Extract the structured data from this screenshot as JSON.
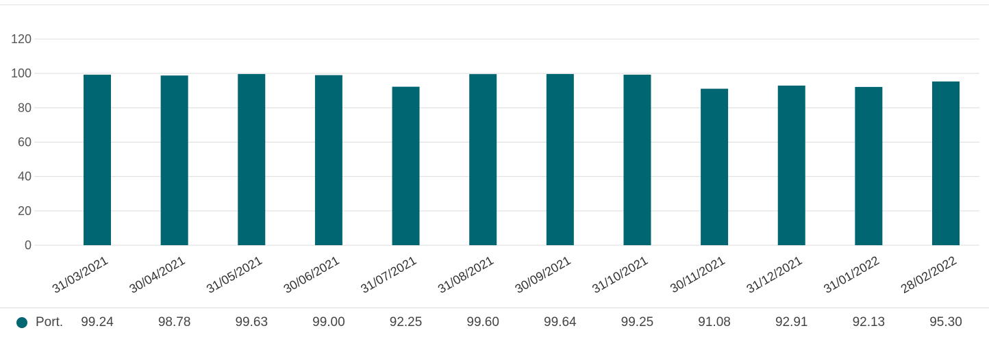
{
  "chart_data": {
    "type": "bar",
    "categories": [
      "31/03/2021",
      "30/04/2021",
      "31/05/2021",
      "30/06/2021",
      "31/07/2021",
      "31/08/2021",
      "30/09/2021",
      "31/10/2021",
      "30/11/2021",
      "31/12/2021",
      "31/01/2022",
      "28/02/2022"
    ],
    "series": [
      {
        "name": "Port.",
        "values": [
          99.24,
          98.78,
          99.63,
          99.0,
          92.25,
          99.6,
          99.64,
          99.25,
          91.08,
          92.91,
          92.13,
          95.3
        ],
        "display_values": [
          "99.24",
          "98.78",
          "99.63",
          "99.00",
          "92.25",
          "99.60",
          "99.64",
          "99.25",
          "91.08",
          "92.91",
          "92.13",
          "95.30"
        ]
      }
    ],
    "yticks": [
      "0",
      "20",
      "40",
      "60",
      "80",
      "100",
      "120"
    ],
    "ylim": [
      0,
      120
    ],
    "grid": true,
    "legend_placement": "bottom-left table",
    "color": "#006672"
  }
}
